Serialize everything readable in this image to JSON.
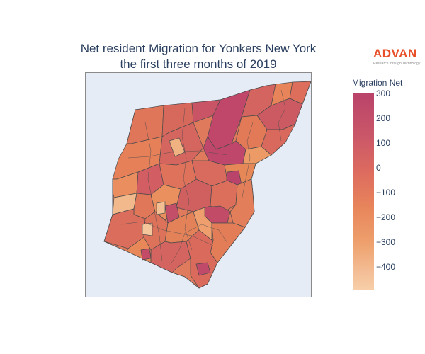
{
  "title_line1": "Net resident Migration for Yonkers New York",
  "title_line2": "the first three months of 2019",
  "logo": {
    "name": "ADVAN",
    "tagline": "Research through Technology"
  },
  "colorbar": {
    "title": "Migration Net",
    "ticks": [
      "300",
      "200",
      "100",
      "0",
      "−100",
      "−200",
      "−300",
      "−400"
    ],
    "colors": [
      "#b9436a",
      "#ca5768",
      "#dd6b5f",
      "#e8855b",
      "#eea06d",
      "#f4c099",
      "#f7cfa9"
    ],
    "range": [
      -470,
      320
    ]
  },
  "map": {
    "background": "#e5ecf6",
    "border_color": "#8a8a8a",
    "type": "choropleth"
  }
}
